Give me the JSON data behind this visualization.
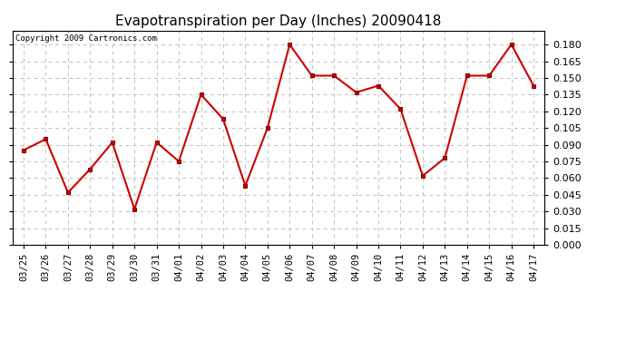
{
  "title": "Evapotranspiration per Day (Inches) 20090418",
  "copyright": "Copyright 2009 Cartronics.com",
  "dates": [
    "03/25",
    "03/26",
    "03/27",
    "03/28",
    "03/29",
    "03/30",
    "03/31",
    "04/01",
    "04/02",
    "04/03",
    "04/04",
    "04/05",
    "04/06",
    "04/07",
    "04/08",
    "04/09",
    "04/10",
    "04/11",
    "04/12",
    "04/13",
    "04/14",
    "04/15",
    "04/16",
    "04/17"
  ],
  "values": [
    0.085,
    0.095,
    0.047,
    0.068,
    0.092,
    0.032,
    0.092,
    0.075,
    0.135,
    0.113,
    0.053,
    0.105,
    0.18,
    0.152,
    0.152,
    0.137,
    0.143,
    0.122,
    0.062,
    0.078,
    0.152,
    0.152,
    0.18,
    0.143
  ],
  "line_color": "#cc0000",
  "marker": "s",
  "marker_color": "#cc0000",
  "marker_size": 3,
  "background_color": "#ffffff",
  "plot_bg_color": "#ffffff",
  "grid_color": "#c0c0c0",
  "ylim": [
    0.0,
    0.1925
  ],
  "yticks": [
    0.0,
    0.015,
    0.03,
    0.045,
    0.06,
    0.075,
    0.09,
    0.105,
    0.12,
    0.135,
    0.15,
    0.165,
    0.18
  ],
  "title_fontsize": 11,
  "copyright_fontsize": 6.5,
  "tick_fontsize": 7.5,
  "ytick_fontsize": 8.0
}
